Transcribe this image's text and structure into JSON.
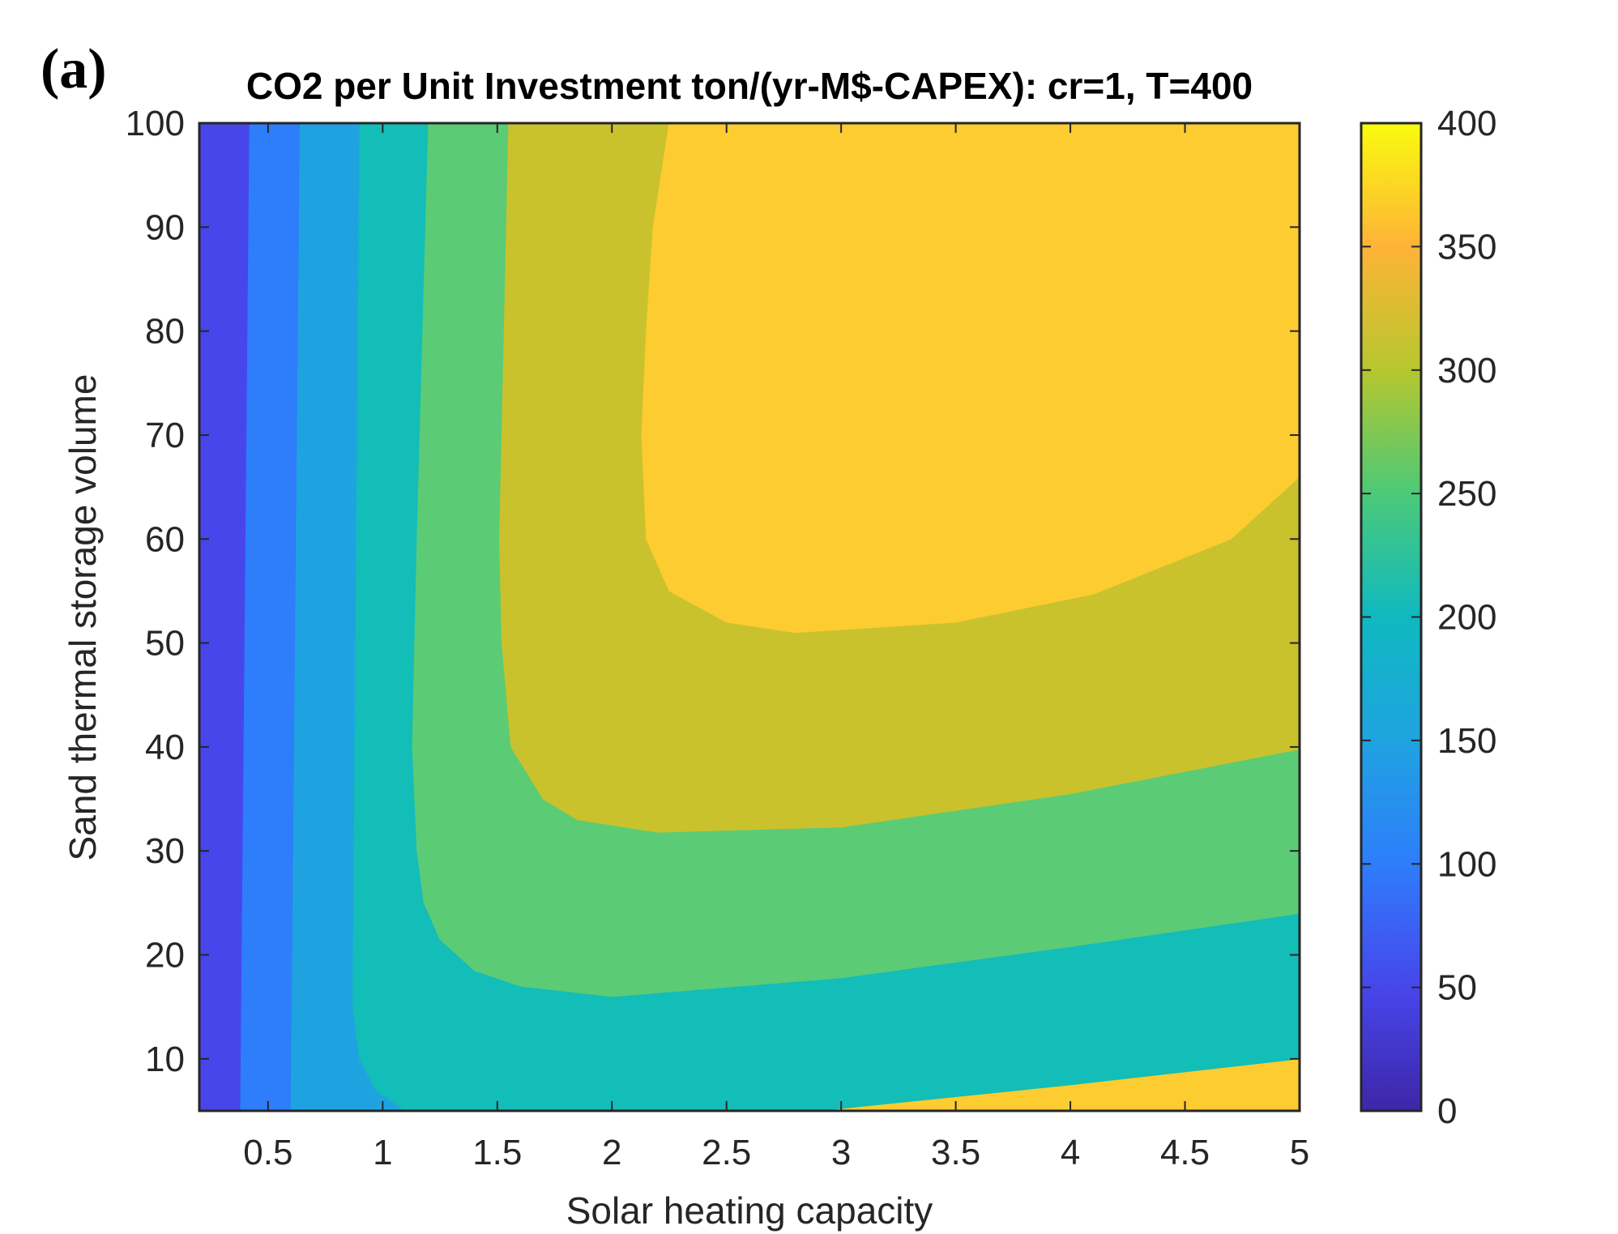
{
  "panel_label": "(a)",
  "chart_data": {
    "type": "contour",
    "title": "CO2 per Unit Investment ton/(yr-M$-CAPEX): cr=1, T=400",
    "xlabel": "Solar heating capacity",
    "ylabel": "Sand thermal storage volume",
    "xlim": [
      0.2,
      5
    ],
    "ylim": [
      5,
      100
    ],
    "xticks": [
      0.5,
      1,
      1.5,
      2,
      2.5,
      3,
      3.5,
      4,
      4.5,
      5
    ],
    "yticks": [
      10,
      20,
      30,
      40,
      50,
      60,
      70,
      80,
      90,
      100
    ],
    "xtick_labels": [
      "0.5",
      "1",
      "1.5",
      "2",
      "2.5",
      "3",
      "3.5",
      "4",
      "4.5",
      "5"
    ],
    "ytick_labels": [
      "10",
      "20",
      "30",
      "40",
      "50",
      "60",
      "70",
      "80",
      "90",
      "100"
    ],
    "colorbar": {
      "lim": [
        0,
        400
      ],
      "ticks": [
        0,
        50,
        100,
        150,
        200,
        250,
        300,
        350,
        400
      ],
      "tick_labels": [
        "0",
        "50",
        "100",
        "150",
        "200",
        "250",
        "300",
        "350",
        "400"
      ],
      "colormap": "parula"
    },
    "levels": [
      {
        "range": [
          50,
          75
        ],
        "color": "#4746EB"
      },
      {
        "range": [
          75,
          125
        ],
        "color": "#2E7DFB"
      },
      {
        "range": [
          125,
          175
        ],
        "color": "#1FA3E0"
      },
      {
        "range": [
          175,
          225
        ],
        "color": "#13BDB8"
      },
      {
        "range": [
          225,
          275
        ],
        "color": "#5CCB76"
      },
      {
        "range": [
          275,
          325
        ],
        "color": "#C9C22C"
      },
      {
        "range": [
          325,
          375
        ],
        "color": "#FCCC30"
      }
    ],
    "regions": [
      {
        "level": 0,
        "boundary": [
          [
            0.2,
            5
          ],
          [
            0.38,
            5
          ],
          [
            0.42,
            100
          ],
          [
            0.2,
            100
          ]
        ]
      },
      {
        "level": 1,
        "boundary": [
          [
            0.38,
            5
          ],
          [
            0.6,
            5
          ],
          [
            0.64,
            100
          ],
          [
            0.42,
            100
          ]
        ]
      },
      {
        "level": 2,
        "boundary": [
          [
            0.6,
            5
          ],
          [
            1.1,
            5
          ],
          [
            0.97,
            7
          ],
          [
            0.9,
            10
          ],
          [
            0.87,
            15
          ],
          [
            0.9,
            100
          ],
          [
            0.64,
            100
          ]
        ]
      },
      {
        "level": 3,
        "boundary": [
          [
            1.1,
            5
          ],
          [
            2.9,
            5
          ],
          [
            4,
            7.5
          ],
          [
            5,
            10
          ],
          [
            5,
            24
          ],
          [
            4,
            20.8
          ],
          [
            3,
            17.8
          ],
          [
            2,
            16
          ],
          [
            1.6,
            17
          ],
          [
            1.4,
            18.5
          ],
          [
            1.25,
            21.5
          ],
          [
            1.18,
            25
          ],
          [
            1.15,
            30
          ],
          [
            1.13,
            40
          ],
          [
            1.15,
            60
          ],
          [
            1.2,
            100
          ],
          [
            0.9,
            100
          ],
          [
            0.87,
            15
          ],
          [
            0.9,
            10
          ],
          [
            0.97,
            7
          ]
        ]
      },
      {
        "level": 4,
        "boundary": [
          [
            5,
            24
          ],
          [
            4,
            20.8
          ],
          [
            3,
            17.8
          ],
          [
            2,
            16
          ],
          [
            1.6,
            17
          ],
          [
            1.4,
            18.5
          ],
          [
            1.25,
            21.5
          ],
          [
            1.18,
            25
          ],
          [
            1.15,
            30
          ],
          [
            1.13,
            40
          ],
          [
            1.15,
            60
          ],
          [
            1.2,
            100
          ],
          [
            1.55,
            100
          ],
          [
            1.52,
            70
          ],
          [
            1.51,
            60
          ],
          [
            1.52,
            50
          ],
          [
            1.56,
            40
          ],
          [
            1.7,
            35
          ],
          [
            1.85,
            33
          ],
          [
            2.2,
            31.8
          ],
          [
            3,
            32.3
          ],
          [
            4,
            35.5
          ],
          [
            5,
            39.8
          ]
        ]
      },
      {
        "level": 5,
        "boundary": [
          [
            5,
            39.8
          ],
          [
            4,
            35.5
          ],
          [
            3,
            32.3
          ],
          [
            2.2,
            31.8
          ],
          [
            1.85,
            33
          ],
          [
            1.7,
            35
          ],
          [
            1.56,
            40
          ],
          [
            1.52,
            50
          ],
          [
            1.51,
            60
          ],
          [
            1.52,
            70
          ],
          [
            1.55,
            100
          ],
          [
            2.25,
            100
          ],
          [
            2.18,
            90
          ],
          [
            2.15,
            80
          ],
          [
            2.13,
            70
          ],
          [
            2.15,
            60
          ],
          [
            2.25,
            55
          ],
          [
            2.5,
            52
          ],
          [
            2.8,
            51
          ],
          [
            3.5,
            52
          ],
          [
            4.1,
            54.7
          ],
          [
            4.7,
            60
          ],
          [
            5,
            66
          ]
        ]
      },
      {
        "level": 6,
        "boundary": [
          [
            5,
            66
          ],
          [
            4.7,
            60
          ],
          [
            4.1,
            54.7
          ],
          [
            3.5,
            52
          ],
          [
            2.8,
            51
          ],
          [
            2.5,
            52
          ],
          [
            2.25,
            55
          ],
          [
            2.15,
            60
          ],
          [
            2.13,
            70
          ],
          [
            2.15,
            80
          ],
          [
            2.18,
            90
          ],
          [
            2.25,
            100
          ],
          [
            5,
            100
          ]
        ]
      }
    ]
  }
}
